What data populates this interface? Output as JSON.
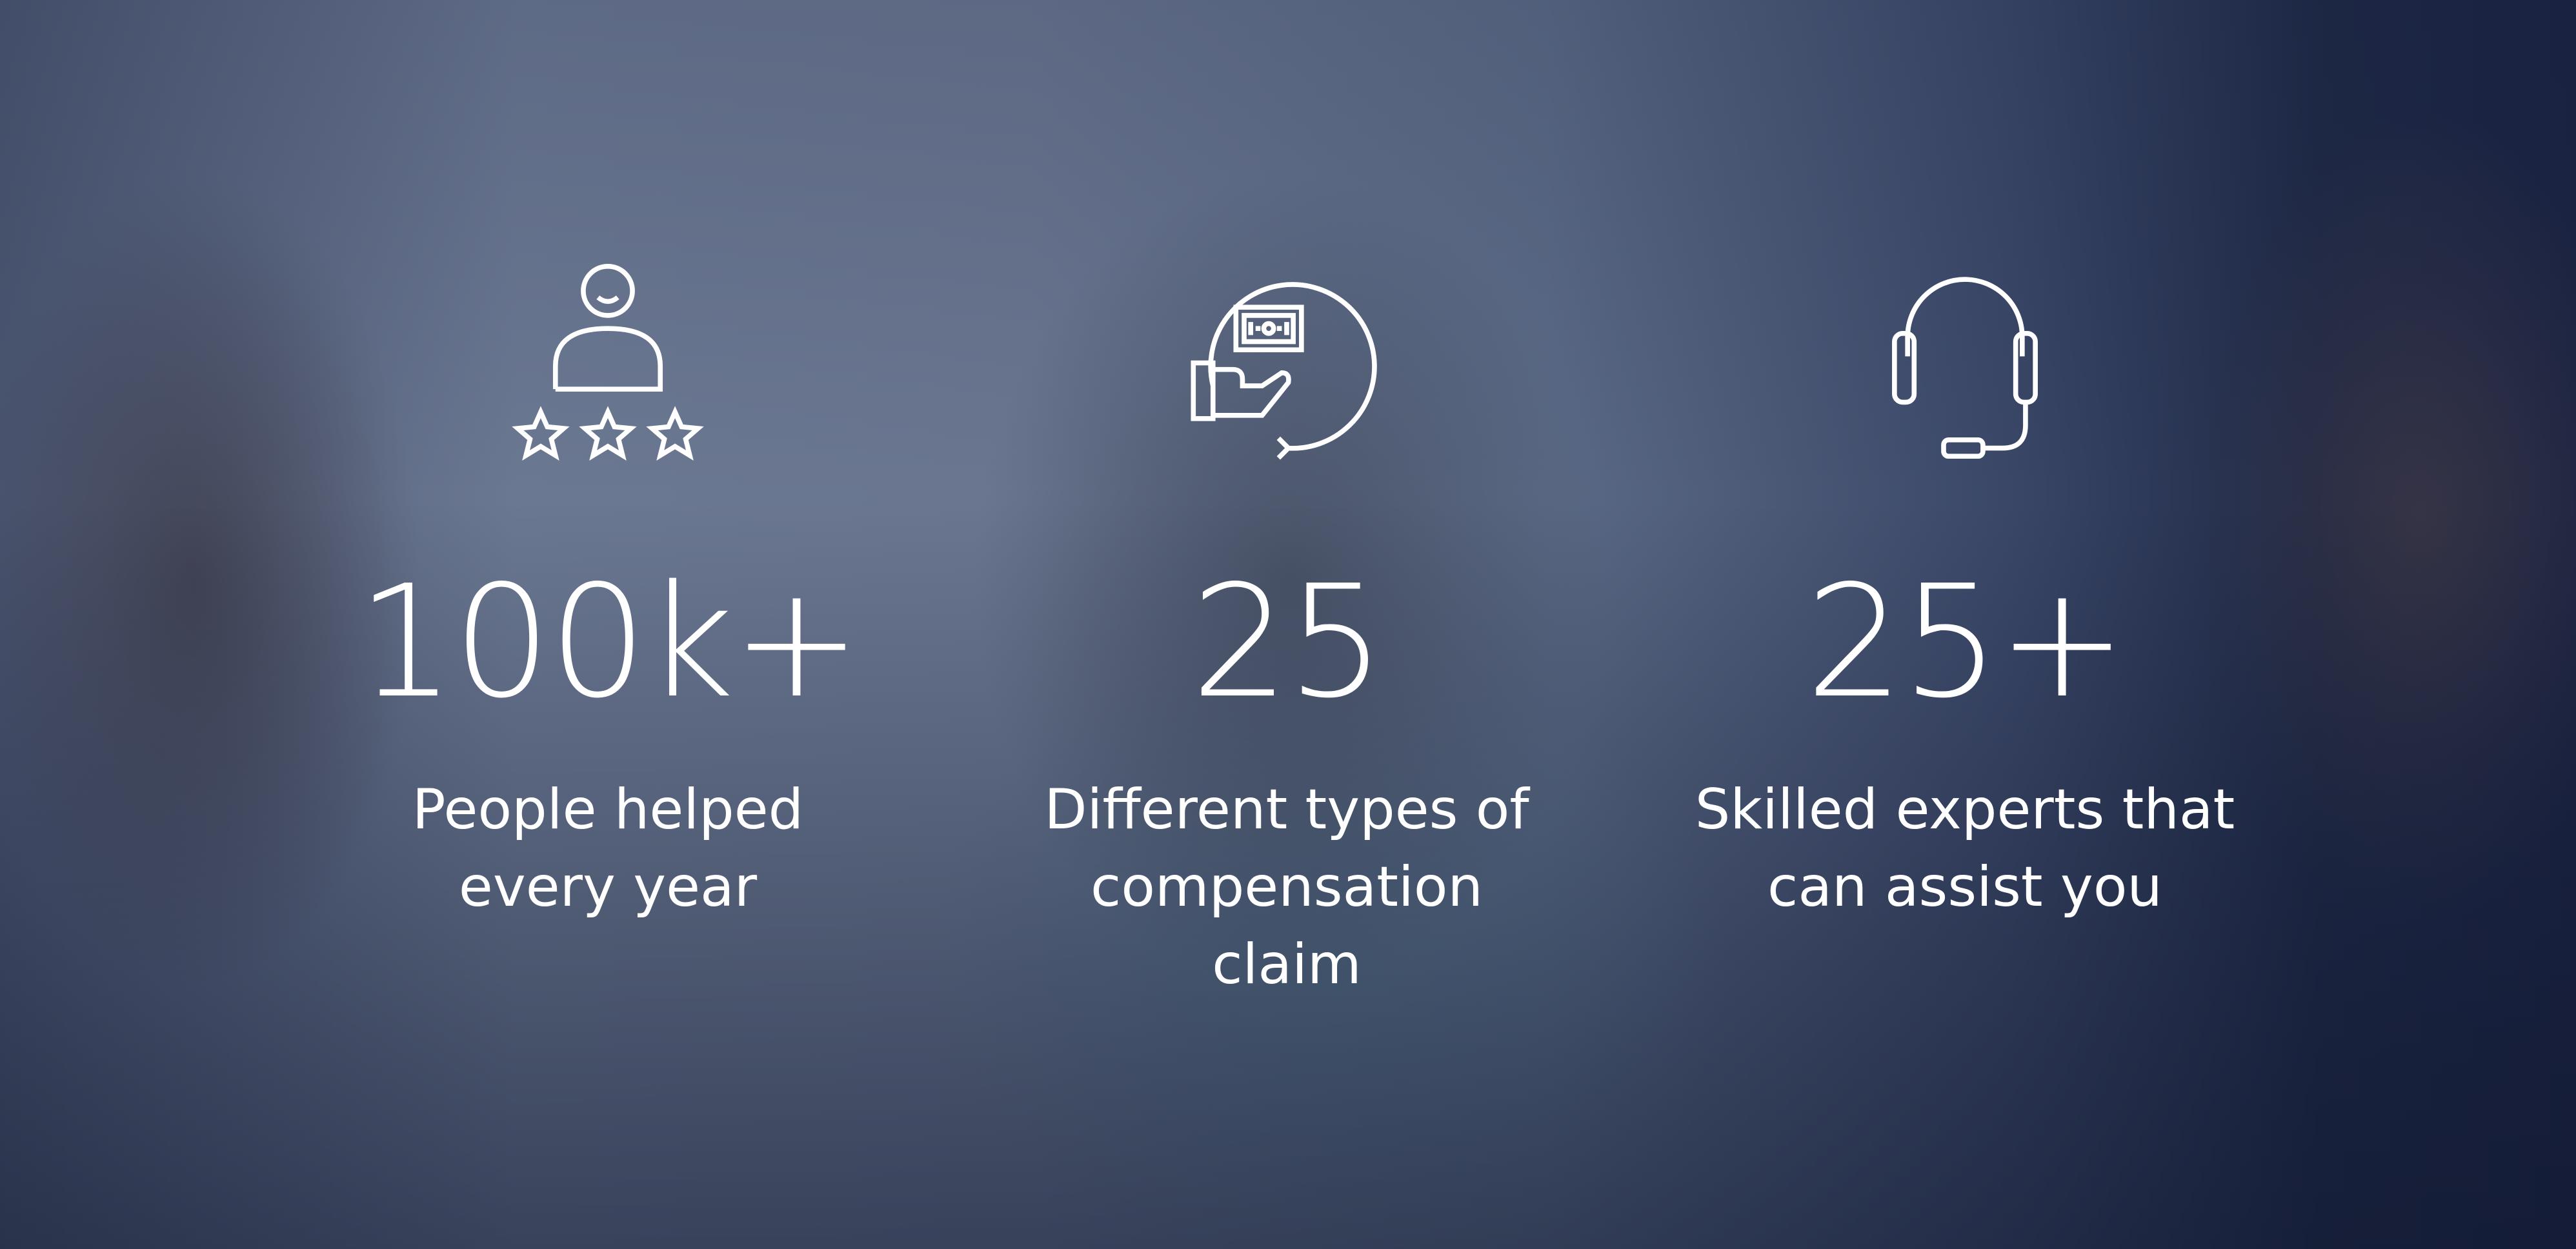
{
  "stats": [
    {
      "icon": "customer-rating-icon",
      "value": "100k+",
      "label_lines": [
        "People helped",
        "every year"
      ]
    },
    {
      "icon": "money-hand-icon",
      "value": "25",
      "label_lines": [
        "Different types of",
        "compensation",
        "claim"
      ]
    },
    {
      "icon": "headset-icon",
      "value": "25+",
      "label_lines": [
        "Skilled experts that",
        "can assist you"
      ]
    }
  ],
  "colors": {
    "overlay": "#1d2947",
    "text": "#ffffff"
  }
}
